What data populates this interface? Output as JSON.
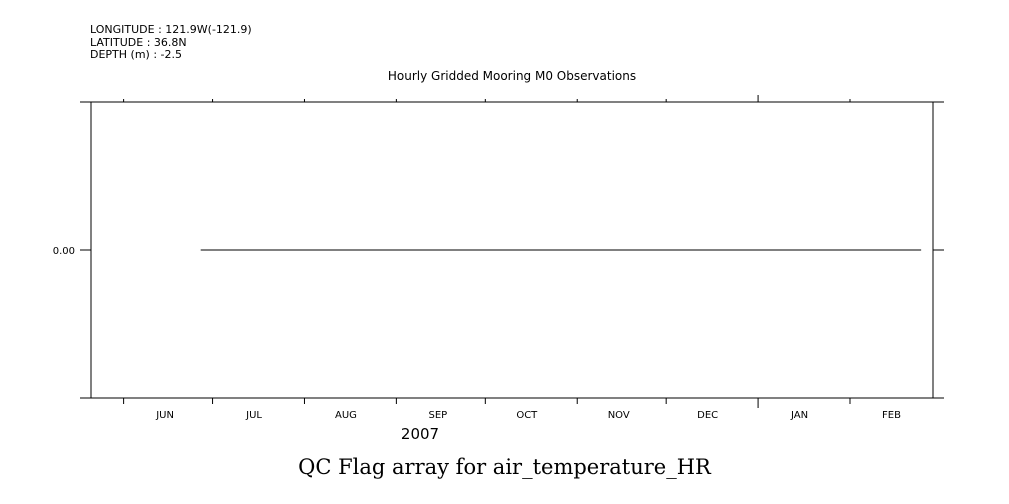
{
  "header": {
    "longitude": "LONGITUDE : 121.9W(-121.9)",
    "latitude": "LATITUDE : 36.8N",
    "depth": "DEPTH (m) : -2.5"
  },
  "caption": "QC Flag array for air_temperature_HR",
  "chart_data": {
    "type": "line",
    "title": "Hourly Gridded Mooring M0 Observations",
    "xlabel": "",
    "ylabel": "",
    "x_tick_labels": [
      "JUN",
      "JUL",
      "AUG",
      "SEP",
      "OCT",
      "NOV",
      "DEC",
      "JAN",
      "FEB"
    ],
    "x_year_label": "2007",
    "xlim": [
      "2007-05-21",
      "2008-02-29"
    ],
    "y_tick_labels": [
      "0.00"
    ],
    "ylim": [
      -1,
      1
    ],
    "grid": false,
    "series": [
      {
        "x": [
          "2007-06-27",
          "2008-02-25"
        ],
        "y": [
          0,
          0
        ]
      }
    ]
  }
}
